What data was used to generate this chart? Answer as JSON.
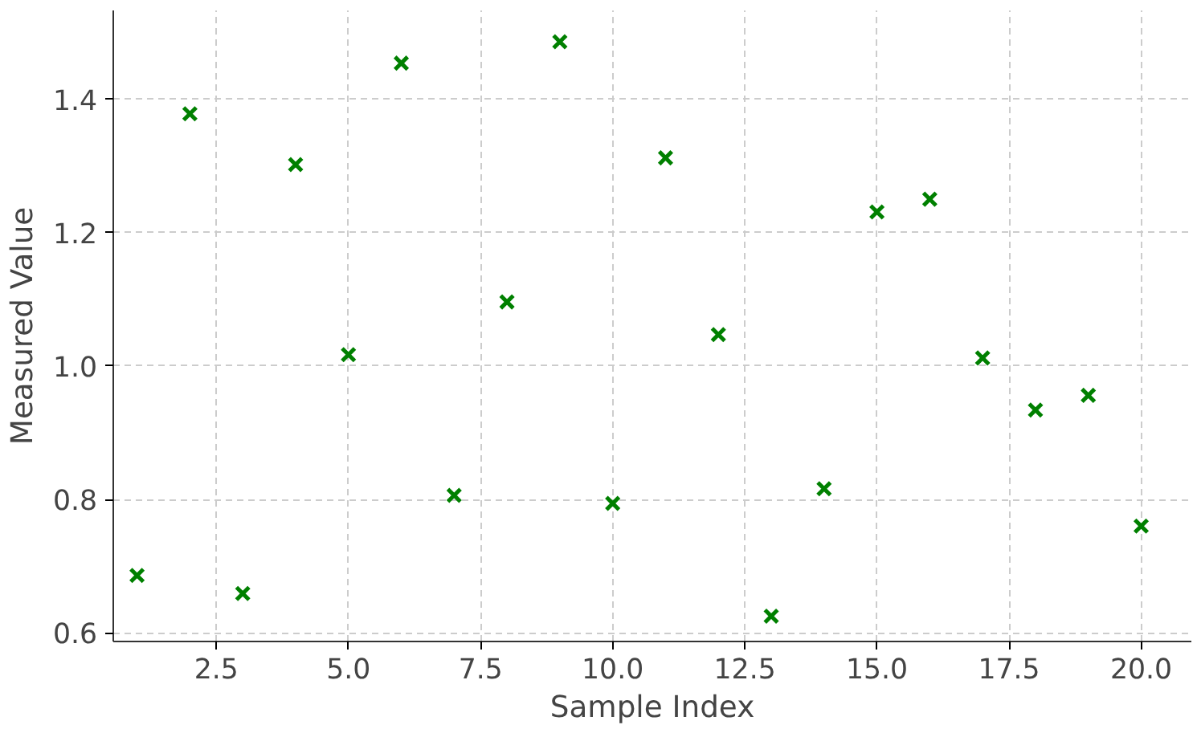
{
  "chart_data": {
    "type": "scatter",
    "xlabel": "Sample Index",
    "ylabel": "Measured Value",
    "x": [
      1,
      2,
      3,
      4,
      5,
      6,
      7,
      8,
      9,
      10,
      11,
      12,
      13,
      14,
      15,
      16,
      17,
      18,
      19,
      20
    ],
    "series": [
      {
        "color": "#008000",
        "values": [
          0.686,
          1.378,
          0.659,
          1.302,
          1.017,
          1.454,
          0.806,
          1.096,
          1.486,
          0.794,
          1.312,
          1.047,
          0.625,
          0.816,
          1.231,
          1.25,
          1.012,
          0.934,
          0.956,
          0.76
        ]
      }
    ],
    "xlim": [
      0.55,
      20.95
    ],
    "ylim": [
      0.587,
      1.533
    ],
    "xticks": [
      {
        "value": 2.5,
        "label": "2.5"
      },
      {
        "value": 5,
        "label": "5.0"
      },
      {
        "value": 7.5,
        "label": "7.5"
      },
      {
        "value": 10,
        "label": "10.0"
      },
      {
        "value": 12.5,
        "label": "12.5"
      },
      {
        "value": 15,
        "label": "15.0"
      },
      {
        "value": 17.5,
        "label": "17.5"
      },
      {
        "value": 20,
        "label": "20.0"
      }
    ],
    "yticks": [
      {
        "value": 0.6,
        "label": "0.6"
      },
      {
        "value": 0.8,
        "label": "0.8"
      },
      {
        "value": 1.0,
        "label": "1.0"
      },
      {
        "value": 1.2,
        "label": "1.2"
      },
      {
        "value": 1.4,
        "label": "1.4"
      }
    ],
    "grid": true,
    "marker": "cross"
  }
}
